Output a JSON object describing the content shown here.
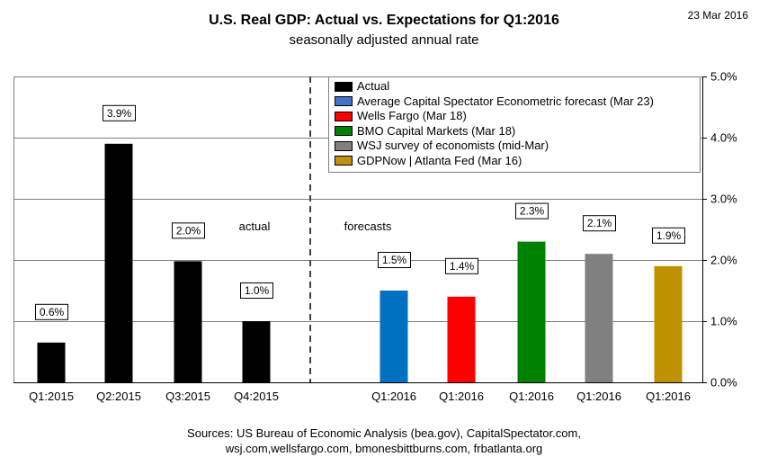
{
  "header": {
    "title": "U.S. Real GDP: Actual vs. Expectations for Q1:2016",
    "subtitle": "seasonally adjusted annual rate",
    "date": "23 Mar 2016"
  },
  "sources": {
    "line1": "Sources: US Bureau of Economic Analysis (bea.gov), CapitalSpectator.com,",
    "line2": "wsj.com,wellsfargo.com,  bmonesbittburns.com,  frbatlanta.org"
  },
  "legend": [
    {
      "label": "Actual",
      "color": "#000000"
    },
    {
      "label": "Average Capital Spectator Econometric forecast (Mar 23)",
      "color": "#4472c4"
    },
    {
      "label": "Wells Fargo (Mar 18)",
      "color": "#ff0000"
    },
    {
      "label": "BMO Capital Markets (Mar 18)",
      "color": "#008000"
    },
    {
      "label": "WSJ survey of economists (mid-Mar)",
      "color": "#808080"
    },
    {
      "label": "GDPNow | Atlanta Fed (Mar 16)",
      "color": "#c09010"
    }
  ],
  "chart_data": {
    "type": "bar",
    "title": "U.S. Real GDP: Actual vs. Expectations for Q1:2016",
    "subtitle": "seasonally adjusted annual rate",
    "ylabel": "",
    "xlabel": "",
    "ylim": [
      0,
      5
    ],
    "yticks": [
      "0.0%",
      "1.0%",
      "2.0%",
      "3.0%",
      "4.0%",
      "5.0%"
    ],
    "y_axis_side": "right",
    "grid": true,
    "legend_position": "top-right",
    "section_labels": {
      "actual": "actual",
      "forecasts": "forecasts"
    },
    "categories": [
      "Q1:2015",
      "Q2:2015",
      "Q3:2015",
      "Q4:2015",
      "Q1:2016",
      "Q1:2016",
      "Q1:2016",
      "Q1:2016",
      "Q1:2016"
    ],
    "values": [
      0.65,
      3.9,
      1.98,
      1.0,
      1.5,
      1.4,
      2.3,
      2.1,
      1.9
    ],
    "data_labels": [
      "0.6%",
      "3.9%",
      "2.0%",
      "1.0%",
      "1.5%",
      "1.4%",
      "2.3%",
      "2.1%",
      "1.9%"
    ],
    "bar_colors": [
      "#000000",
      "#000000",
      "#000000",
      "#000000",
      "#0070c0",
      "#ff0000",
      "#008000",
      "#808080",
      "#bf9000"
    ],
    "series_names": [
      "Actual",
      "Actual",
      "Actual",
      "Actual",
      "Average Capital Spectator Econometric forecast (Mar 23)",
      "Wells Fargo (Mar 18)",
      "BMO Capital Markets (Mar 18)",
      "WSJ survey of economists (mid-Mar)",
      "GDPNow | Atlanta Fed (Mar 16)"
    ]
  }
}
